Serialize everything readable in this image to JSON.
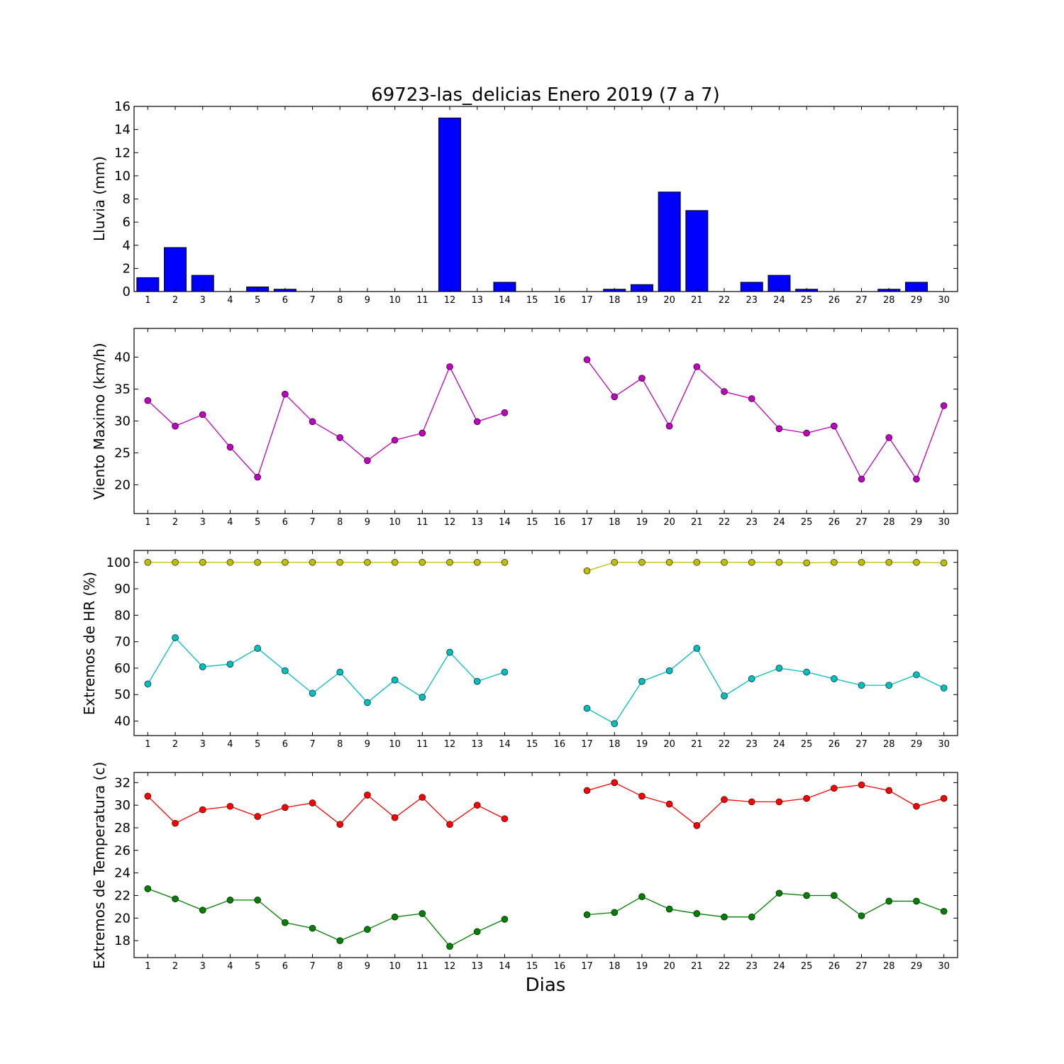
{
  "chart_data": [
    {
      "type": "bar",
      "title": "69723-las_delicias Enero 2019  (7 a 7)",
      "ylabel": "Lluvia (mm)",
      "xlabel": "",
      "x": [
        1,
        2,
        3,
        4,
        5,
        6,
        7,
        8,
        9,
        10,
        11,
        12,
        13,
        14,
        15,
        16,
        17,
        18,
        19,
        20,
        21,
        22,
        23,
        24,
        25,
        26,
        27,
        28,
        29,
        30
      ],
      "xlim": [
        0.5,
        30.5
      ],
      "ylim": [
        0,
        16
      ],
      "yticks": [
        0,
        2,
        4,
        6,
        8,
        10,
        12,
        14,
        16
      ],
      "series": [
        {
          "color": "#0000ff",
          "values": [
            1.2,
            3.8,
            1.4,
            0,
            0.4,
            0.2,
            0,
            0,
            0,
            0,
            0,
            15.0,
            0,
            0.8,
            0,
            0,
            0,
            0.2,
            0.6,
            8.6,
            7.0,
            0,
            0.8,
            1.4,
            0.2,
            0,
            0,
            0.2,
            0.8,
            0
          ]
        }
      ]
    },
    {
      "type": "line",
      "ylabel": "Viento Maximo (km/h)",
      "x": [
        1,
        2,
        3,
        4,
        5,
        6,
        7,
        8,
        9,
        10,
        11,
        12,
        13,
        14,
        15,
        16,
        17,
        18,
        19,
        20,
        21,
        22,
        23,
        24,
        25,
        26,
        27,
        28,
        29,
        30
      ],
      "xlim": [
        0.5,
        30.5
      ],
      "ylim": [
        15.5,
        44.5
      ],
      "yticks": [
        20,
        25,
        30,
        35,
        40
      ],
      "series": [
        {
          "color": "#bf00bf",
          "values": [
            33.2,
            29.2,
            31.0,
            25.9,
            21.2,
            34.2,
            29.9,
            27.4,
            23.8,
            27.0,
            28.1,
            38.5,
            29.9,
            31.3,
            null,
            null,
            39.6,
            33.8,
            36.7,
            29.2,
            38.5,
            34.6,
            33.5,
            28.8,
            28.1,
            29.2,
            20.9,
            27.4,
            20.9,
            32.4
          ]
        }
      ]
    },
    {
      "type": "line",
      "ylabel": "Extremos de HR (%)",
      "x": [
        1,
        2,
        3,
        4,
        5,
        6,
        7,
        8,
        9,
        10,
        11,
        12,
        13,
        14,
        15,
        16,
        17,
        18,
        19,
        20,
        21,
        22,
        23,
        24,
        25,
        26,
        27,
        28,
        29,
        30
      ],
      "xlim": [
        0.5,
        30.5
      ],
      "ylim": [
        34.5,
        104.5
      ],
      "yticks": [
        40,
        50,
        60,
        70,
        80,
        90,
        100
      ],
      "series": [
        {
          "color": "#bfbf00",
          "values": [
            100,
            100,
            100,
            100,
            100,
            100,
            100,
            100,
            100,
            100,
            100,
            100,
            100,
            100,
            null,
            null,
            96.8,
            100,
            100,
            100,
            100,
            100,
            100,
            100,
            99.8,
            100,
            100,
            100,
            100,
            99.8
          ]
        },
        {
          "color": "#00bfbf",
          "values": [
            54,
            71.5,
            60.5,
            61.5,
            67.5,
            59,
            50.5,
            58.5,
            47,
            55.5,
            49,
            66,
            55,
            58.5,
            null,
            null,
            44.8,
            39,
            55,
            59,
            67.5,
            49.5,
            56,
            60,
            58.5,
            56,
            53.5,
            53.5,
            57.5,
            52.5
          ]
        }
      ]
    },
    {
      "type": "line",
      "ylabel": "Extremos de Temperatura (c)",
      "xlabel": "Dias",
      "x": [
        1,
        2,
        3,
        4,
        5,
        6,
        7,
        8,
        9,
        10,
        11,
        12,
        13,
        14,
        15,
        16,
        17,
        18,
        19,
        20,
        21,
        22,
        23,
        24,
        25,
        26,
        27,
        28,
        29,
        30
      ],
      "xlim": [
        0.5,
        30.5
      ],
      "ylim": [
        16.5,
        32.9
      ],
      "yticks": [
        18,
        20,
        22,
        24,
        26,
        28,
        30,
        32
      ],
      "series": [
        {
          "color": "#ff0000",
          "values": [
            30.8,
            28.4,
            29.6,
            29.9,
            29.0,
            29.8,
            30.2,
            28.3,
            30.9,
            28.9,
            30.7,
            28.3,
            30.0,
            28.8,
            null,
            null,
            31.3,
            32.0,
            30.8,
            30.1,
            28.2,
            30.5,
            30.3,
            30.3,
            30.6,
            31.5,
            31.8,
            31.3,
            29.9,
            30.6
          ]
        },
        {
          "color": "#008000",
          "values": [
            22.6,
            21.7,
            20.7,
            21.6,
            21.6,
            19.6,
            19.1,
            18.0,
            19.0,
            20.1,
            20.4,
            17.5,
            18.8,
            19.9,
            null,
            null,
            20.3,
            20.5,
            21.9,
            20.8,
            20.4,
            20.1,
            20.1,
            22.2,
            22.0,
            22.0,
            20.2,
            21.5,
            21.5,
            20.6
          ]
        }
      ]
    }
  ]
}
